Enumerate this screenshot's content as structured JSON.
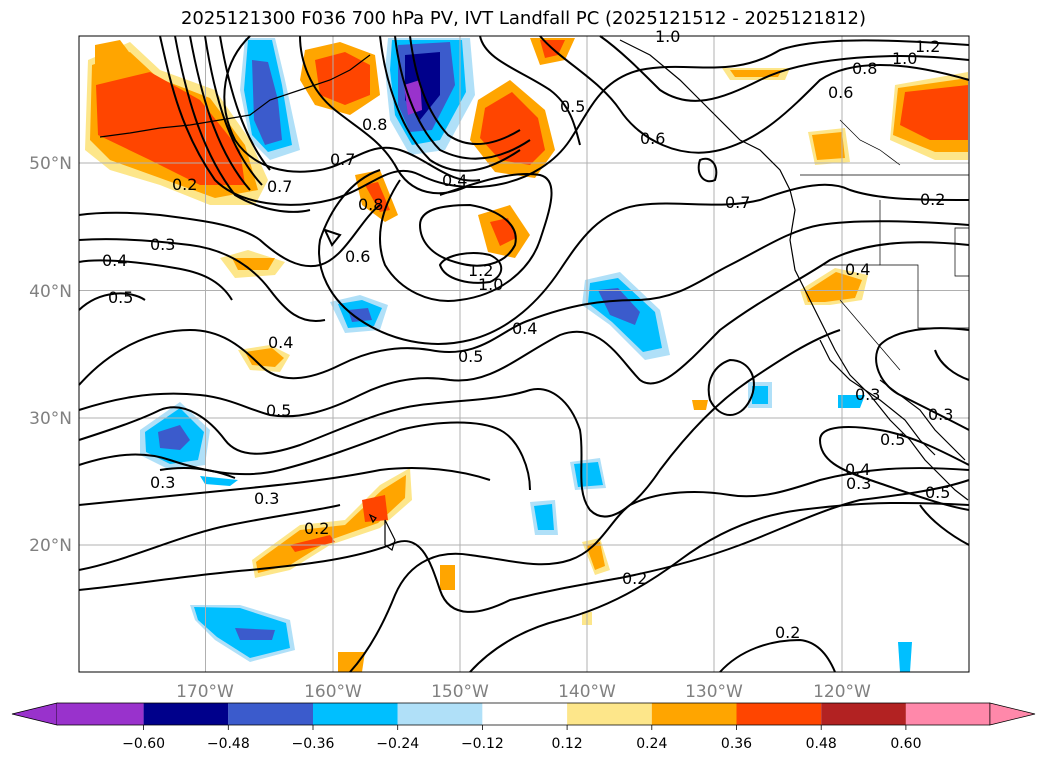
{
  "title": "2025121300 F036 700 hPa PV, IVT Landfall PC (2025121512 - 2025121812)",
  "lat_labels": [
    "50°N",
    "40°N",
    "30°N",
    "20°N"
  ],
  "lon_labels": [
    "170°W",
    "160°W",
    "150°W",
    "140°W",
    "130°W",
    "120°W"
  ],
  "contour_labels": [
    "1.0",
    "1.2",
    "1.0",
    "0.8",
    "0.6",
    "0.8",
    "0.7",
    "0.5",
    "0.6",
    "0.7",
    "0.7",
    "0.8",
    "0.4",
    "0.3",
    "0.4",
    "0.5",
    "0.6",
    "1.2",
    "1.0",
    "0.4",
    "0.5",
    "0.4",
    "0.5",
    "0.3",
    "0.4",
    "0.3",
    "0.3",
    "0.4",
    "0.3",
    "0.3",
    "0.2",
    "0.2",
    "0.2",
    "0.5",
    "0.5",
    "0.2",
    "0.2"
  ],
  "colorbar": {
    "ticks": [
      "−0.60",
      "−0.48",
      "−0.36",
      "−0.24",
      "−0.12",
      "0.12",
      "0.24",
      "0.36",
      "0.48",
      "0.60"
    ],
    "colors": [
      "#9932cc",
      "#00008b",
      "#3b5bcc",
      "#00bfff",
      "#b0e0f8",
      "#ffffff",
      "#fde68a",
      "#ffa500",
      "#ff4500",
      "#b22222",
      "#ff88aa"
    ]
  },
  "colors": {
    "pos_light": "#fde68a",
    "pos_mid": "#ffa500",
    "pos_high": "#ff4500",
    "neg_light": "#b0e0f8",
    "neg_mid": "#00bfff",
    "neg_high": "#3b5bcc",
    "neg_max": "#00008b",
    "neg_ext": "#9932cc"
  }
}
